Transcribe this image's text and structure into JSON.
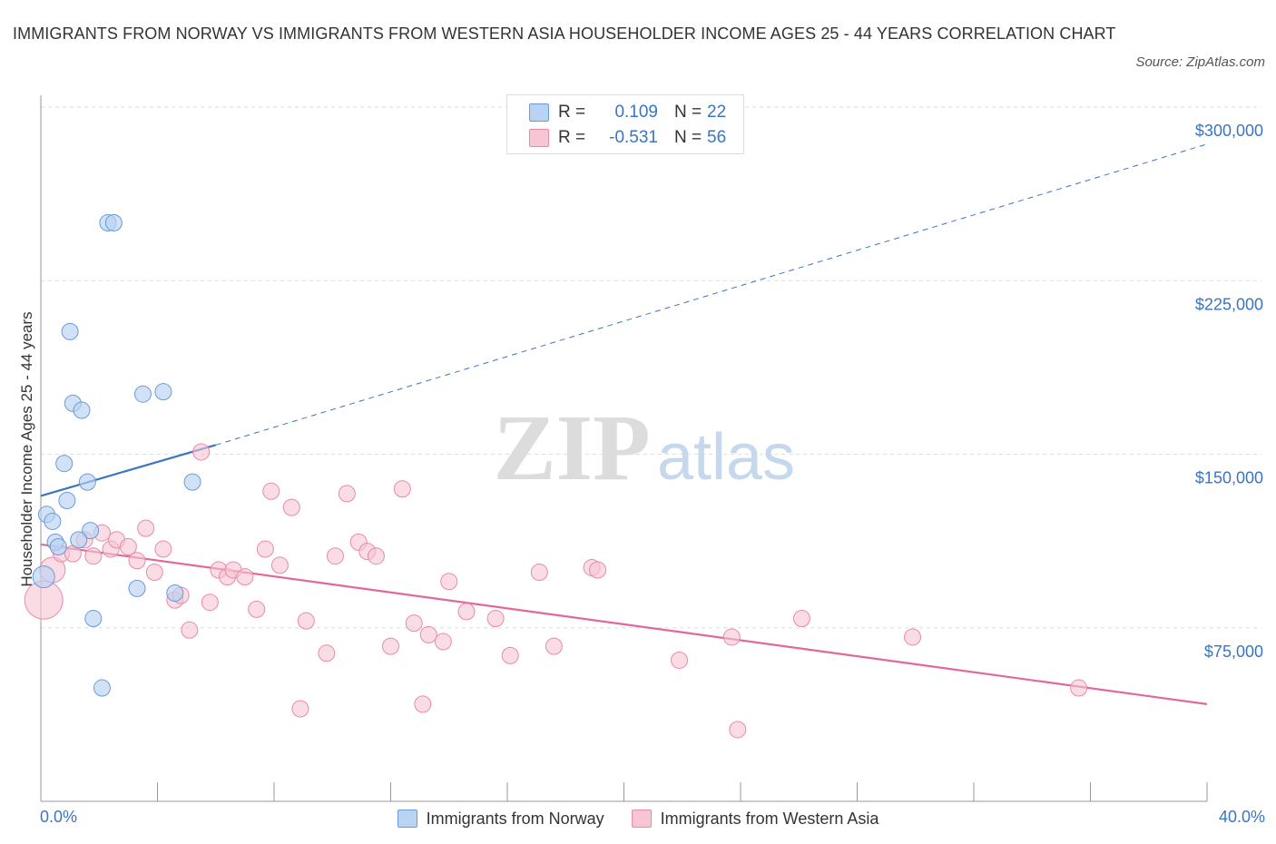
{
  "title": "IMMIGRANTS FROM NORWAY VS IMMIGRANTS FROM WESTERN ASIA HOUSEHOLDER INCOME AGES 25 - 44 YEARS CORRELATION CHART",
  "source": "Source: ZipAtlas.com",
  "watermark": {
    "zip": "ZIP",
    "atlas": "atlas"
  },
  "legend_top": {
    "r_label": "R =",
    "n_label": "N =",
    "rows": [
      {
        "r": "0.109",
        "n": "22",
        "color": "#b9d3f2",
        "edge": "#6a9bd8"
      },
      {
        "r": "-0.531",
        "n": "56",
        "color": "#f7c5d4",
        "edge": "#e98aa7"
      }
    ]
  },
  "colors": {
    "norway": "#b9d3f2",
    "norway_edge": "#6a9bd8",
    "norway_line": "#3a74c4",
    "wasia": "#f7c5d4",
    "wasia_edge": "#e98aa7",
    "wasia_line": "#e0689a",
    "axis_text": "#3a74c4"
  },
  "chart_data": {
    "type": "scatter",
    "title": "IMMIGRANTS FROM NORWAY VS IMMIGRANTS FROM WESTERN ASIA HOUSEHOLDER INCOME AGES 25 - 44 YEARS CORRELATION CHART",
    "xlabel": "",
    "ylabel": "Householder Income Ages 25 - 44 years",
    "xlim": [
      0,
      40
    ],
    "ylim": [
      0,
      300000
    ],
    "x_tick_labels": [
      "0.0%",
      "40.0%"
    ],
    "y_ticks": [
      75000,
      150000,
      225000,
      300000
    ],
    "y_tick_labels": [
      "$75,000",
      "$150,000",
      "$225,000",
      "$300,000"
    ],
    "grid": true,
    "legend": "bottom-center",
    "series": [
      {
        "name": "Immigrants from Norway",
        "points": [
          [
            2.3,
            250000
          ],
          [
            2.5,
            250000
          ],
          [
            1.0,
            203000
          ],
          [
            1.1,
            172000
          ],
          [
            1.4,
            169000
          ],
          [
            3.5,
            176000
          ],
          [
            4.2,
            177000
          ],
          [
            0.8,
            146000
          ],
          [
            1.6,
            138000
          ],
          [
            0.9,
            130000
          ],
          [
            5.2,
            138000
          ],
          [
            0.2,
            124000
          ],
          [
            0.4,
            121000
          ],
          [
            1.7,
            117000
          ],
          [
            1.3,
            113000
          ],
          [
            0.5,
            112000
          ],
          [
            0.6,
            110000
          ],
          [
            0.1,
            97000
          ],
          [
            3.3,
            92000
          ],
          [
            4.6,
            90000
          ],
          [
            1.8,
            79000
          ],
          [
            2.1,
            49000
          ]
        ],
        "trend": {
          "x": [
            0,
            6
          ],
          "y": [
            132000,
            154000
          ],
          "extended_to": [
            40,
            284000
          ]
        },
        "r": 0.109,
        "n": 22
      },
      {
        "name": "Immigrants from Western Asia",
        "points": [
          [
            0.1,
            87000
          ],
          [
            0.4,
            100000
          ],
          [
            0.7,
            107000
          ],
          [
            1.1,
            107000
          ],
          [
            1.5,
            113000
          ],
          [
            1.8,
            106000
          ],
          [
            2.1,
            116000
          ],
          [
            2.4,
            109000
          ],
          [
            2.6,
            113000
          ],
          [
            3.0,
            110000
          ],
          [
            3.3,
            104000
          ],
          [
            3.6,
            118000
          ],
          [
            3.9,
            99000
          ],
          [
            4.2,
            109000
          ],
          [
            4.6,
            87000
          ],
          [
            4.8,
            89000
          ],
          [
            5.1,
            74000
          ],
          [
            5.5,
            151000
          ],
          [
            5.8,
            86000
          ],
          [
            6.1,
            100000
          ],
          [
            6.4,
            97000
          ],
          [
            6.6,
            100000
          ],
          [
            7.0,
            97000
          ],
          [
            7.4,
            83000
          ],
          [
            7.7,
            109000
          ],
          [
            7.9,
            134000
          ],
          [
            8.2,
            102000
          ],
          [
            8.6,
            127000
          ],
          [
            8.9,
            40000
          ],
          [
            9.1,
            78000
          ],
          [
            9.8,
            64000
          ],
          [
            10.1,
            106000
          ],
          [
            10.5,
            133000
          ],
          [
            10.9,
            112000
          ],
          [
            11.2,
            108000
          ],
          [
            11.5,
            106000
          ],
          [
            12.0,
            67000
          ],
          [
            12.4,
            135000
          ],
          [
            12.8,
            77000
          ],
          [
            13.1,
            42000
          ],
          [
            13.3,
            72000
          ],
          [
            13.8,
            69000
          ],
          [
            14.0,
            95000
          ],
          [
            14.6,
            82000
          ],
          [
            15.6,
            79000
          ],
          [
            16.1,
            63000
          ],
          [
            17.1,
            99000
          ],
          [
            17.6,
            67000
          ],
          [
            18.9,
            101000
          ],
          [
            19.1,
            100000
          ],
          [
            21.9,
            61000
          ],
          [
            23.7,
            71000
          ],
          [
            23.9,
            31000
          ],
          [
            26.1,
            79000
          ],
          [
            29.9,
            71000
          ],
          [
            35.6,
            49000
          ]
        ],
        "trend": {
          "x": [
            0,
            40
          ],
          "y": [
            111000,
            42000
          ]
        },
        "r": -0.531,
        "n": 56
      }
    ]
  }
}
